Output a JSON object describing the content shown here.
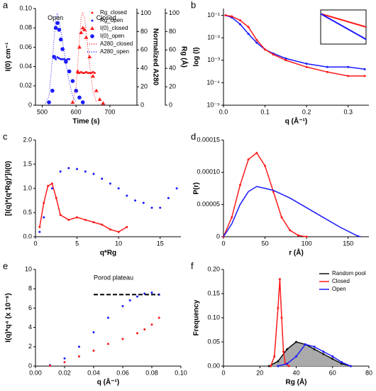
{
  "chart_data": [
    {
      "type": "line",
      "label": "a",
      "xlabel": "Time (s)",
      "ylabel": "I(0) cm⁻¹",
      "y2label": "Normalized A280",
      "y3label": "Rg (Å)",
      "xlim": [
        480,
        780
      ],
      "xticks": [
        500,
        600,
        700
      ],
      "ylim": [
        0,
        0.1
      ],
      "yticks": [
        0,
        0.02,
        0.04,
        0.06,
        0.08,
        {
          "value": 0.1,
          "label": "0.10"
        }
      ],
      "y2lim": [
        0,
        105
      ],
      "y2ticks": [
        0,
        20,
        40,
        60,
        80,
        100
      ],
      "y3lim": [
        0,
        105
      ],
      "y3ticks": [
        0,
        20,
        40,
        60,
        80,
        100
      ],
      "annotations": [
        "Open",
        "Closed"
      ],
      "legend": "upper-right",
      "series": [
        {
          "name": "Rg_closed",
          "color": "#ff1a1a",
          "marker": "dot",
          "axis": "y3",
          "x": [
            605,
            610,
            615,
            620,
            625,
            630,
            635,
            640,
            645,
            650,
            655
          ],
          "values": [
            35,
            35,
            36,
            35,
            35,
            36,
            35,
            35,
            35,
            36,
            35
          ]
        },
        {
          "name": "Rg_open",
          "color": "#1a1aff",
          "marker": "dot",
          "axis": "y3",
          "x": [
            540,
            545,
            550,
            555,
            560,
            565,
            570,
            575,
            580
          ],
          "values": [
            50,
            52,
            51,
            50,
            50,
            50,
            49,
            50,
            50
          ]
        },
        {
          "name": "I(0)_closed",
          "color": "#ff1a1a",
          "marker": "triangle",
          "x": [
            590,
            600,
            605,
            610,
            615,
            620,
            625,
            630,
            640,
            650,
            660,
            670,
            680
          ],
          "values": [
            0.003,
            0.015,
            0.035,
            0.06,
            0.075,
            0.08,
            0.078,
            0.07,
            0.05,
            0.03,
            0.015,
            0.006,
            0.002
          ]
        },
        {
          "name": "I(0)_open",
          "color": "#1a1aff",
          "marker": "circle",
          "x": [
            520,
            530,
            535,
            540,
            545,
            550,
            555,
            560,
            570,
            580,
            590,
            600,
            610,
            620
          ],
          "values": [
            0.003,
            0.015,
            0.05,
            0.08,
            0.085,
            0.078,
            0.068,
            0.058,
            0.045,
            0.035,
            0.025,
            0.015,
            0.008,
            0.003
          ]
        },
        {
          "name": "A280_closed",
          "color": "#ff1a1a",
          "marker": "dotted",
          "axis": "y2",
          "x": [
            590,
            600,
            610,
            615,
            620,
            625,
            630,
            640,
            650,
            660
          ],
          "values": [
            3,
            20,
            70,
            95,
            100,
            95,
            80,
            45,
            15,
            4
          ]
        },
        {
          "name": "A280_open",
          "color": "#1a1aff",
          "marker": "dotted",
          "axis": "y2",
          "x": [
            510,
            520,
            530,
            540,
            545,
            550,
            560,
            570,
            580,
            590,
            600
          ],
          "values": [
            2,
            10,
            50,
            95,
            100,
            92,
            70,
            45,
            25,
            10,
            3
          ]
        }
      ]
    },
    {
      "type": "line",
      "label": "b",
      "xlabel": "q (Å⁻¹)",
      "ylabel": "log (I)",
      "ylog": true,
      "xlim": [
        0,
        0.35
      ],
      "xticks": [
        {
          "value": 0,
          "label": "0.0"
        },
        0.1,
        0.2,
        0.3
      ],
      "ylim": [
        1e-05,
        0.2
      ],
      "yticks": [
        {
          "value": 1e-05,
          "label": "10⁻⁵"
        },
        {
          "value": 0.0001,
          "label": "10⁻⁴"
        },
        {
          "value": 0.001,
          "label": "10⁻³"
        },
        {
          "value": 0.01,
          "label": "10⁻²"
        },
        {
          "value": 0.1,
          "label": "10⁻¹"
        }
      ],
      "series": [
        {
          "color": "#1a1aff",
          "marker": "line+dot",
          "x": [
            0.005,
            0.02,
            0.04,
            0.06,
            0.08,
            0.1,
            0.12,
            0.15,
            0.2,
            0.25,
            0.3,
            0.34
          ],
          "values": [
            0.1,
            0.08,
            0.04,
            0.015,
            0.006,
            0.003,
            0.002,
            0.0012,
            0.0007,
            0.0005,
            0.0005,
            0.0004
          ]
        },
        {
          "color": "#ff1a1a",
          "marker": "line+dot",
          "x": [
            0.005,
            0.02,
            0.04,
            0.06,
            0.08,
            0.1,
            0.12,
            0.15,
            0.2,
            0.25,
            0.3,
            0.34
          ],
          "values": [
            0.1,
            0.09,
            0.06,
            0.03,
            0.008,
            0.003,
            0.0018,
            0.001,
            0.0005,
            0.0003,
            0.0002,
            0.0002
          ]
        }
      ],
      "inset": {
        "xlim": [
          0,
          0.0012
        ],
        "ylim": [
          -4.2,
          -2.4
        ],
        "series": [
          {
            "color": "#ff1a1a",
            "x": [
              0,
              0.0012
            ],
            "values": [
              -2.6,
              -3.3
            ]
          },
          {
            "color": "#1a1aff",
            "x": [
              0,
              0.0012
            ],
            "values": [
              -2.6,
              -3.95
            ]
          }
        ]
      }
    },
    {
      "type": "scatter",
      "label": "c",
      "xlabel": "q*Rg",
      "ylabel": "[I(q)*(q*Rg)²]/I(0)",
      "xlim": [
        0,
        17.5
      ],
      "xticks": [
        0,
        5,
        10,
        15
      ],
      "ylim": [
        0,
        2
      ],
      "yticks": [
        {
          "value": 0,
          "label": "0.0"
        },
        0.5,
        {
          "value": 1,
          "label": "1.0"
        },
        1.5,
        {
          "value": 2,
          "label": "2.0"
        }
      ],
      "series": [
        {
          "color": "#ff1a1a",
          "marker": "line+dot",
          "x": [
            0.5,
            1,
            1.5,
            2,
            2.5,
            3,
            4,
            5,
            6,
            7,
            8,
            9,
            10,
            11
          ],
          "values": [
            0.2,
            0.7,
            1.05,
            1.1,
            0.8,
            0.45,
            0.35,
            0.4,
            0.35,
            0.3,
            0.25,
            0.15,
            0.1,
            0.2
          ]
        },
        {
          "color": "#1a1aff",
          "marker": "dot",
          "x": [
            0.5,
            1,
            2,
            3,
            4,
            5,
            6,
            7,
            8,
            9,
            10,
            11,
            12,
            13,
            14,
            15,
            16,
            17
          ],
          "values": [
            0.1,
            0.4,
            1.0,
            1.35,
            1.42,
            1.4,
            1.35,
            1.3,
            1.2,
            1.1,
            1.0,
            0.85,
            0.75,
            0.7,
            0.6,
            0.6,
            0.8,
            1.0
          ]
        }
      ]
    },
    {
      "type": "line",
      "label": "d",
      "xlabel": "r (Å)",
      "ylabel": "P(r)",
      "xlim": [
        0,
        175
      ],
      "xticks": [
        0,
        50,
        100,
        150
      ],
      "ylim": [
        0,
        0.00015
      ],
      "yticks": [
        0,
        5e-05,
        {
          "value": 0.0001,
          "label": "0.00010"
        },
        0.00015
      ],
      "series": [
        {
          "color": "#ff1a1a",
          "marker": "line+dot",
          "x": [
            0,
            10,
            20,
            30,
            40,
            50,
            60,
            70,
            80,
            90,
            100
          ],
          "values": [
            0,
            3e-05,
            8e-05,
            0.00012,
            0.00013,
            0.00011,
            7e-05,
            3e-05,
            1e-05,
            2e-06,
            0
          ]
        },
        {
          "color": "#1a1aff",
          "marker": "line",
          "x": [
            0,
            10,
            20,
            30,
            40,
            60,
            80,
            100,
            120,
            140,
            160,
            165
          ],
          "values": [
            0,
            2e-05,
            5e-05,
            7e-05,
            7.8e-05,
            7.2e-05,
            6e-05,
            4.5e-05,
            3e-05,
            1.5e-05,
            2e-06,
            0
          ]
        }
      ]
    },
    {
      "type": "scatter",
      "label": "e",
      "xlabel": "q (Å⁻¹)",
      "ylabel": "I(q)*q⁴ (x 10⁻⁸)",
      "xlim": [
        0,
        0.1
      ],
      "xticks": [
        {
          "value": 0,
          "label": "0.00"
        },
        0.02,
        0.04,
        0.06,
        0.08,
        {
          "value": 0.1,
          "label": "0.10"
        }
      ],
      "ylim": [
        0,
        10
      ],
      "yticks": [
        0,
        2,
        4,
        6,
        8,
        10
      ],
      "annotations": [
        "Porod plateau"
      ],
      "plateau": {
        "value": 7.4,
        "x": [
          0.04,
          0.085
        ]
      },
      "series": [
        {
          "color": "#1a1aff",
          "marker": "dot",
          "x": [
            0.01,
            0.02,
            0.03,
            0.04,
            0.05,
            0.06,
            0.065,
            0.07,
            0.075,
            0.08,
            0.085
          ],
          "values": [
            0.1,
            0.8,
            2.0,
            3.5,
            5.0,
            6.2,
            6.8,
            7.2,
            7.5,
            7.6,
            7.4
          ]
        },
        {
          "color": "#ff1a1a",
          "marker": "dot",
          "x": [
            0.01,
            0.02,
            0.03,
            0.04,
            0.05,
            0.06,
            0.07,
            0.075,
            0.08,
            0.085
          ],
          "values": [
            0.05,
            0.4,
            1.0,
            1.6,
            2.3,
            2.8,
            3.4,
            3.8,
            4.3,
            5.0
          ]
        }
      ]
    },
    {
      "type": "line",
      "label": "f",
      "xlabel": "Rg (Å)",
      "ylabel": "Frequency",
      "legend": "upper-right",
      "xlim": [
        0,
        80
      ],
      "xticks": [
        0,
        20,
        40,
        60,
        80
      ],
      "ylim": [
        0,
        0.2
      ],
      "yticks": [
        {
          "value": 0,
          "label": "0.00"
        },
        0.05,
        {
          "value": 0.1,
          "label": "0.10"
        },
        0.15,
        {
          "value": 0.2,
          "label": "0.20"
        }
      ],
      "series": [
        {
          "name": "Random pool",
          "color": "#111111",
          "fill": "#aaaaaa",
          "marker": "line+dot",
          "x": [
            25,
            30,
            35,
            40,
            45,
            50,
            55,
            60,
            65,
            70
          ],
          "values": [
            0,
            0.01,
            0.035,
            0.05,
            0.045,
            0.035,
            0.025,
            0.015,
            0.005,
            0
          ]
        },
        {
          "name": "Closed",
          "color": "#ff1a1a",
          "marker": "line+dot",
          "x": [
            26,
            28,
            30,
            31,
            32,
            33,
            34,
            36
          ],
          "values": [
            0,
            0.02,
            0.12,
            0.18,
            0.1,
            0.03,
            0.005,
            0
          ]
        },
        {
          "name": "Open",
          "color": "#1a1aff",
          "marker": "line+dot",
          "x": [
            30,
            35,
            40,
            45,
            50,
            55,
            60,
            65,
            70
          ],
          "values": [
            0,
            0.005,
            0.02,
            0.045,
            0.04,
            0.03,
            0.02,
            0.008,
            0
          ]
        }
      ]
    }
  ]
}
